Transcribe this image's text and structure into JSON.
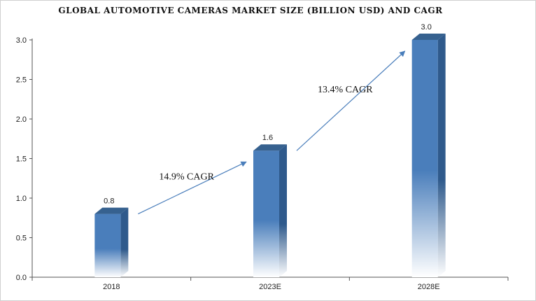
{
  "chart_data": {
    "type": "bar",
    "title": "GLOBAL AUTOMOTIVE  CAMERAS MARKET  SIZE (BILLION USD) AND CAGR",
    "categories": [
      "2018",
      "2023E",
      "2028E"
    ],
    "values": [
      0.8,
      1.6,
      3.0
    ],
    "data_labels": [
      "0.8",
      "1.6",
      "3.0"
    ],
    "ylim": [
      0,
      3.0
    ],
    "yticks": [
      "0.0",
      "0.5",
      "1.0",
      "1.5",
      "2.0",
      "2.5",
      "3.0"
    ],
    "xlabel": "",
    "ylabel": "",
    "grid": false,
    "legend": "none",
    "annotations": [
      {
        "text": "14.9% CAGR",
        "from_category": "2018",
        "to_category": "2023E"
      },
      {
        "text": "13.4% CAGR",
        "from_category": "2023E",
        "to_category": "2028E"
      }
    ],
    "colors": {
      "bar_front": "#4a7ebb",
      "bar_side": "#2f5a8c",
      "bar_top": "#36618f",
      "arrow": "#4a7ebb",
      "axis": "#555555"
    }
  }
}
